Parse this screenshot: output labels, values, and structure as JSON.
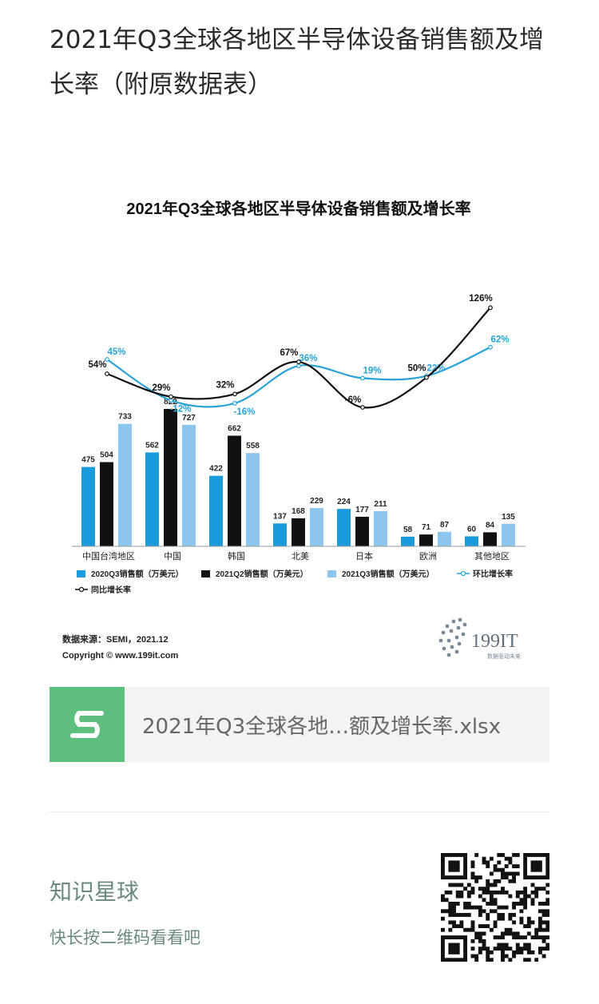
{
  "post": {
    "title": "2021年Q3全球各地区半导体设备销售额及增长率（附原数据表）"
  },
  "chart_data": {
    "type": "bar",
    "title": "2021年Q3全球各地区半导体设备销售额及增长率",
    "categories": [
      "中国台湾地区",
      "中国",
      "韩国",
      "北美",
      "日本",
      "欧洲",
      "其他地区"
    ],
    "series": [
      {
        "name": "2020Q3销售额（万美元）",
        "kind": "bar",
        "color": "#1a9bdc",
        "values": [
          475,
          562,
          422,
          137,
          224,
          58,
          60
        ]
      },
      {
        "name": "2021Q2销售额（万美元）",
        "kind": "bar",
        "color": "#111111",
        "values": [
          504,
          822,
          662,
          168,
          177,
          71,
          84
        ]
      },
      {
        "name": "2021Q3销售额（万美元）",
        "kind": "bar",
        "color": "#8cc6ef",
        "values": [
          733,
          727,
          558,
          229,
          211,
          87,
          135
        ]
      },
      {
        "name": "环比增长率",
        "kind": "line",
        "color": "#29a3d6",
        "values": [
          45,
          -12,
          -16,
          36,
          19,
          22,
          62
        ]
      },
      {
        "name": "同比增长率",
        "kind": "line",
        "color": "#111111",
        "values": [
          54,
          29,
          32,
          67,
          -6,
          50,
          126
        ]
      }
    ],
    "value_labels": {
      "bars": [
        [
          "475",
          "504",
          "733"
        ],
        [
          "562",
          "822",
          "727"
        ],
        [
          "422",
          "662",
          "558"
        ],
        [
          "137",
          "168",
          "229"
        ],
        [
          "224",
          "177",
          "211"
        ],
        [
          "58",
          "71",
          "87"
        ],
        [
          "60",
          "84",
          "135"
        ]
      ],
      "hb": [
        "45%",
        "-12%",
        "-16%",
        "36%",
        "19%",
        "22%",
        "62%"
      ],
      "yoy": [
        "54%",
        "29%",
        "32%",
        "67%",
        "-6%",
        "50%",
        "126%"
      ]
    },
    "legend_position": "bottom",
    "grid": false,
    "source": "数据来源：SEMI，2021.12",
    "copyright": "Copyright © www.199it.com",
    "logo_text": "199IT",
    "logo_subtext": "数据驱动未来"
  },
  "attachment": {
    "file_name": "2021年Q3全球各地…额及增长率.xlsx",
    "icon": "spreadsheet-icon"
  },
  "planet": {
    "name": "知识星球",
    "hint": "快长按二维码看看吧"
  },
  "colors": {
    "file_icon_bg": "#5fbf7f",
    "planet_text": "#6a8a7e"
  }
}
